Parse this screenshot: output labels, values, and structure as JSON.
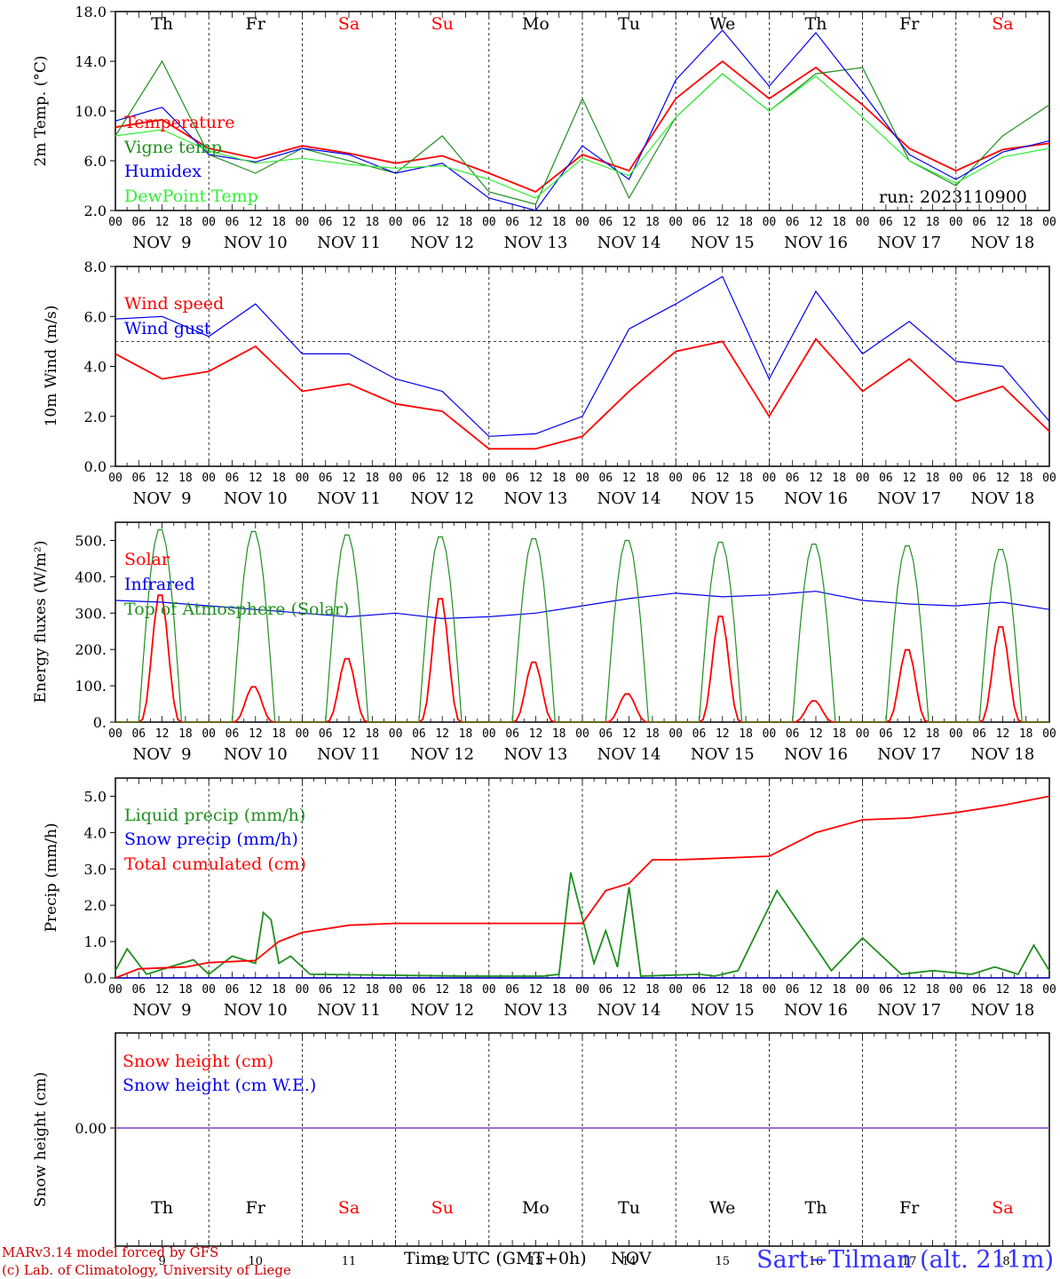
{
  "colors": {
    "red": "#ff0000",
    "green": "#1f8f1f",
    "blue": "#0000ee",
    "lightgreen": "#33ee33",
    "purple": "#7f3fbf",
    "footer_red": "#cc0000",
    "site_blue": "#3333ff"
  },
  "axis": {
    "hour_ticks": [
      "00",
      "06",
      "12",
      "18"
    ],
    "last_tick": "00",
    "date_labels": [
      "NOV  9",
      "NOV 10",
      "NOV 11",
      "NOV 12",
      "NOV 13",
      "NOV 14",
      "NOV 15",
      "NOV 16",
      "NOV 17",
      "NOV 18"
    ],
    "weekdays": [
      "Th",
      "Fr",
      "Sa",
      "Su",
      "Mo",
      "Tu",
      "We",
      "Th",
      "Fr",
      "Sa"
    ],
    "weekday_colors": [
      "black",
      "black",
      "red",
      "red",
      "black",
      "black",
      "black",
      "black",
      "black",
      "red"
    ],
    "bottom_days": [
      "9",
      "10",
      "11",
      "12",
      "13",
      "14",
      "15",
      "16",
      "17",
      "18"
    ],
    "xlabel": "Time UTC (GMT+0h)",
    "xlabel_unit": "NOV"
  },
  "run_label": "run: 2023110900",
  "footer": {
    "model": "MARv3.14 model forced by GFS",
    "credit": "(c) Lab. of Climatology, University of Liege",
    "site": "Sart−Tilman (alt. 211m)"
  },
  "chart_data": [
    {
      "type": "line",
      "ylabel": "2m Temp. (°C)",
      "ylim": [
        2.0,
        18.0
      ],
      "yticks": [
        "2.0",
        "6.0",
        "10.0",
        "14.0",
        "18.0"
      ],
      "x_unit": "hours since NOV 9 00 UTC",
      "series": [
        {
          "name": "Temperature",
          "color": "red",
          "x": [
            0,
            12,
            24,
            36,
            48,
            60,
            72,
            84,
            96,
            108,
            120,
            132,
            144,
            156,
            168,
            180,
            192,
            204,
            216,
            228,
            240
          ],
          "values": [
            8.7,
            9.3,
            7.0,
            6.2,
            7.2,
            6.6,
            5.8,
            6.4,
            5.0,
            3.5,
            6.5,
            5.2,
            11.0,
            14.0,
            11.0,
            13.5,
            10.5,
            7.0,
            5.2,
            6.9,
            7.4
          ]
        },
        {
          "name": "Vigne temp",
          "color": "green",
          "x": [
            0,
            12,
            24,
            36,
            48,
            60,
            72,
            84,
            96,
            108,
            120,
            132,
            144,
            156,
            168,
            180,
            192,
            204,
            216,
            228,
            240
          ],
          "values": [
            8.0,
            14.0,
            6.5,
            5.0,
            7.0,
            6.0,
            5.0,
            8.0,
            3.5,
            2.5,
            11.0,
            3.0,
            9.5,
            13.0,
            10.0,
            13.0,
            13.5,
            6.0,
            4.0,
            8.0,
            10.5
          ]
        },
        {
          "name": "Humidex",
          "color": "blue",
          "x": [
            0,
            12,
            24,
            36,
            48,
            60,
            72,
            84,
            96,
            108,
            120,
            132,
            144,
            156,
            168,
            180,
            192,
            204,
            216,
            228,
            240
          ],
          "values": [
            9.2,
            10.3,
            6.5,
            5.9,
            7.0,
            6.5,
            5.0,
            5.8,
            3.0,
            2.0,
            7.2,
            4.5,
            12.5,
            16.5,
            12.0,
            16.3,
            11.5,
            6.5,
            4.5,
            6.7,
            7.6
          ]
        },
        {
          "name": "DewPoint Temp",
          "color": "lightgreen",
          "x": [
            0,
            12,
            24,
            36,
            48,
            60,
            72,
            84,
            96,
            108,
            120,
            132,
            144,
            156,
            168,
            180,
            192,
            204,
            216,
            228,
            240
          ],
          "values": [
            8.0,
            8.5,
            6.8,
            5.8,
            6.2,
            5.7,
            5.4,
            5.6,
            4.5,
            3.0,
            6.2,
            4.8,
            9.5,
            13.0,
            10.0,
            12.8,
            9.5,
            6.0,
            4.2,
            6.3,
            7.0
          ]
        }
      ]
    },
    {
      "type": "line",
      "ylabel": "10m Wind (m/s)",
      "ylim": [
        0.0,
        8.0
      ],
      "yticks": [
        "0.0",
        "2.0",
        "4.0",
        "6.0",
        "8.0"
      ],
      "reference_line": 5.0,
      "x_unit": "hours since NOV 9 00 UTC",
      "series": [
        {
          "name": "Wind speed",
          "color": "red",
          "x": [
            0,
            12,
            24,
            36,
            48,
            60,
            72,
            84,
            96,
            108,
            120,
            132,
            144,
            156,
            168,
            180,
            192,
            204,
            216,
            228,
            240
          ],
          "values": [
            4.5,
            3.5,
            3.8,
            4.8,
            3.0,
            3.3,
            2.5,
            2.2,
            0.7,
            0.7,
            1.2,
            3.0,
            4.6,
            5.0,
            2.0,
            5.1,
            3.0,
            4.3,
            2.6,
            3.2,
            1.4
          ]
        },
        {
          "name": "Wind gust",
          "color": "blue",
          "x": [
            0,
            12,
            24,
            36,
            48,
            60,
            72,
            84,
            96,
            108,
            120,
            132,
            144,
            156,
            168,
            180,
            192,
            204,
            216,
            228,
            240
          ],
          "values": [
            5.9,
            6.0,
            5.2,
            6.5,
            4.5,
            4.5,
            3.5,
            3.0,
            1.2,
            1.3,
            2.0,
            5.5,
            6.5,
            7.6,
            3.5,
            7.0,
            4.5,
            5.8,
            4.2,
            4.0,
            1.8
          ]
        }
      ]
    },
    {
      "type": "line",
      "ylabel": "Energy fluxes (W/m²)",
      "ylim": [
        0,
        550
      ],
      "yticks": [
        "0.",
        "100.",
        "200.",
        "300.",
        "400.",
        "500."
      ],
      "x_unit": "hours since NOV 9 00 UTC",
      "series": [
        {
          "name": "Solar",
          "color": "red",
          "day_peaks": [
            360,
            100,
            180,
            350,
            170,
            80,
            300,
            60,
            205,
            270
          ]
        },
        {
          "name": "Infrared",
          "color": "blue",
          "x": [
            0,
            12,
            24,
            36,
            48,
            60,
            72,
            84,
            96,
            108,
            120,
            132,
            144,
            156,
            168,
            180,
            192,
            204,
            216,
            228,
            240
          ],
          "values": [
            335,
            330,
            320,
            310,
            300,
            290,
            300,
            285,
            290,
            300,
            320,
            340,
            355,
            345,
            350,
            360,
            335,
            325,
            320,
            330,
            310
          ]
        },
        {
          "name": "Top of Atmosphere (Solar)",
          "color": "green",
          "day_peaks": [
            535,
            530,
            520,
            515,
            510,
            505,
            500,
            495,
            490,
            480
          ]
        }
      ]
    },
    {
      "type": "line",
      "ylabel": "Precip (mm/h)",
      "ylim": [
        0.0,
        5.5
      ],
      "yticks": [
        "0.0",
        "1.0",
        "2.0",
        "3.0",
        "4.0",
        "5.0"
      ],
      "x_unit": "hours since NOV 9 00 UTC",
      "series": [
        {
          "name": "Liquid precip (mm/h)",
          "color": "green",
          "x": [
            0,
            3,
            8,
            20,
            24,
            30,
            36,
            38,
            40,
            42,
            45,
            50,
            90,
            110,
            114,
            117,
            123,
            126,
            129,
            132,
            135,
            150,
            154,
            160,
            170,
            184,
            192,
            202,
            210,
            220,
            226,
            232,
            236,
            240
          ],
          "values": [
            0.2,
            0.8,
            0.1,
            0.5,
            0.1,
            0.6,
            0.4,
            1.8,
            1.6,
            0.4,
            0.6,
            0.1,
            0.05,
            0.05,
            0.1,
            2.9,
            0.4,
            1.3,
            0.3,
            2.5,
            0.05,
            0.1,
            0.05,
            0.2,
            2.4,
            0.2,
            1.1,
            0.1,
            0.2,
            0.1,
            0.3,
            0.1,
            0.9,
            0.2
          ]
        },
        {
          "name": "Snow precip (mm/h)",
          "color": "blue",
          "x": [
            0,
            240
          ],
          "values": [
            0,
            0
          ]
        },
        {
          "name": "Total cumulated (cm)",
          "color": "red",
          "x": [
            0,
            6,
            18,
            24,
            36,
            42,
            48,
            60,
            72,
            84,
            96,
            108,
            120,
            126,
            132,
            138,
            144,
            150,
            168,
            180,
            192,
            204,
            216,
            228,
            240
          ],
          "values": [
            0.0,
            0.25,
            0.3,
            0.42,
            0.48,
            1.0,
            1.25,
            1.45,
            1.5,
            1.5,
            1.5,
            1.5,
            1.5,
            2.4,
            2.6,
            3.25,
            3.25,
            3.27,
            3.35,
            4.0,
            4.35,
            4.4,
            4.55,
            4.75,
            5.0
          ]
        }
      ]
    },
    {
      "type": "line",
      "ylabel": "Snow height (cm)",
      "ytick": "0.00",
      "x_unit": "hours since NOV 9 00 UTC",
      "series": [
        {
          "name": "Snow height (cm)",
          "color": "red",
          "values": [
            0,
            0
          ]
        },
        {
          "name": "Snow height (cm W.E.)",
          "color": "blue",
          "values": [
            0,
            0
          ]
        }
      ]
    }
  ]
}
